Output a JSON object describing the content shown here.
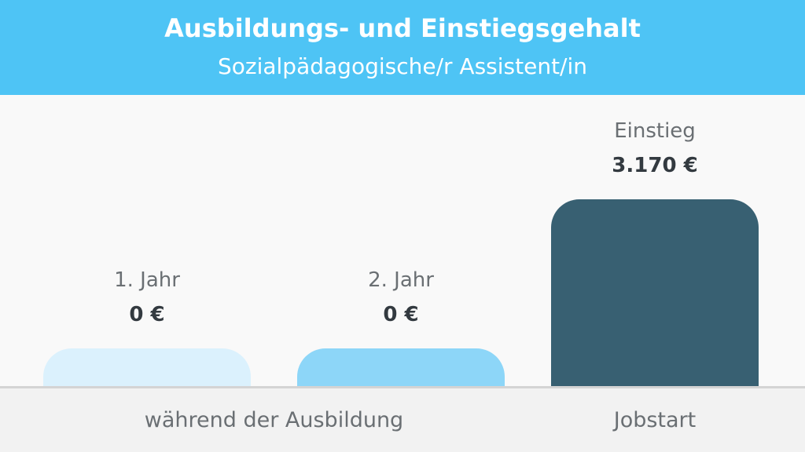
{
  "colors": {
    "header_bg": "#4ec4f5",
    "bar_year1": "#dbf1fd",
    "bar_year2": "#8dd6f8",
    "bar_entry": "#386072"
  },
  "header": {
    "title": "Ausbildungs- und Einstiegsgehalt",
    "subtitle": "Sozialpädagogische/r Assistent/in"
  },
  "chart_data": {
    "type": "bar",
    "title": "Ausbildungs- und Einstiegsgehalt",
    "subtitle": "Sozialpädagogische/r Assistent/in",
    "categories": [
      "1. Jahr",
      "2. Jahr",
      "Einstieg"
    ],
    "values": [
      0,
      0,
      3170
    ],
    "value_labels": [
      "0 €",
      "0 €",
      "3.170 €"
    ],
    "unit": "€",
    "groups": [
      {
        "label": "während der Ausbildung",
        "categories": [
          "1. Jahr",
          "2. Jahr"
        ]
      },
      {
        "label": "Jobstart",
        "categories": [
          "Einstieg"
        ]
      }
    ],
    "ylim": [
      0,
      3170
    ],
    "xlabel": "",
    "ylabel": "",
    "grid": false,
    "legend": "none"
  }
}
